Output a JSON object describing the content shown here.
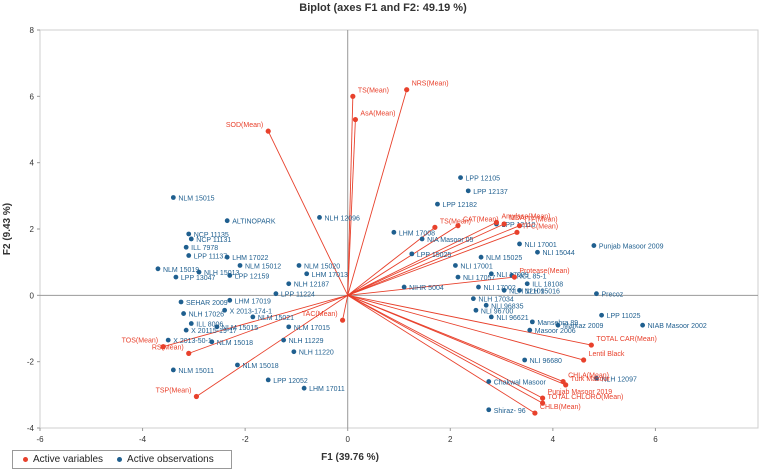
{
  "chart_data": {
    "type": "scatter",
    "title": "Biplot (axes F1 and F2: 49.19 %)",
    "xlabel": "F1 (39.76 %)",
    "ylabel": "F2 (9.43 %)",
    "xlim": [
      -6,
      8
    ],
    "ylim": [
      -4,
      8
    ],
    "xticks": [
      "-6",
      "-4",
      "-2",
      "0",
      "2",
      "4",
      "6"
    ],
    "yticks": [
      "-4",
      "-2",
      "0",
      "2",
      "4",
      "6",
      "8"
    ],
    "grid": false,
    "legend_position": "bottom-left",
    "colors": {
      "variables": "#e8412c",
      "observations": "#1f5f8f",
      "vector": "#e8412c",
      "axis": "#999999"
    },
    "legend": [
      {
        "label": "Active variables",
        "color": "#e8412c"
      },
      {
        "label": "Active observations",
        "color": "#1f5f8f"
      }
    ],
    "variables": [
      {
        "name": "TS(Mean)",
        "x": 0.1,
        "y": 6.0
      },
      {
        "name": "NRS(Mean)",
        "x": 1.15,
        "y": 6.2
      },
      {
        "name": "AsA(Mean)",
        "x": 0.15,
        "y": 5.3
      },
      {
        "name": "SOD(Mean)",
        "x": -1.55,
        "y": 4.95
      },
      {
        "name": "TS(Mean)",
        "x": 1.7,
        "y": 2.05
      },
      {
        "name": "CAT(Mean)",
        "x": 2.15,
        "y": 2.1
      },
      {
        "name": "Amylase(Mean)",
        "x": 2.9,
        "y": 2.2
      },
      {
        "name": "MDA",
        "x": 3.05,
        "y": 2.15
      },
      {
        "name": "(TF(Mean)",
        "x": 3.35,
        "y": 2.1
      },
      {
        "name": "TPC(Mean)",
        "x": 3.3,
        "y": 1.9
      },
      {
        "name": "Protease(Mean)",
        "x": 3.25,
        "y": 0.55
      },
      {
        "name": "TAC(Mean)",
        "x": -0.1,
        "y": -0.75
      },
      {
        "name": "TOS(Mean)",
        "x": -3.6,
        "y": -1.55
      },
      {
        "name": "RS(Mean)",
        "x": -3.1,
        "y": -1.75
      },
      {
        "name": "TSP(Mean)",
        "x": -2.95,
        "y": -3.05
      },
      {
        "name": "TOTAL CAR(Mean)",
        "x": 4.75,
        "y": -1.5
      },
      {
        "name": "Lentil Black",
        "x": 4.6,
        "y": -1.95
      },
      {
        "name": "CHLA(Mean)",
        "x": 4.2,
        "y": -2.6
      },
      {
        "name": "Turk Masoor",
        "x": 4.25,
        "y": -2.7
      },
      {
        "name": "Punjab Masoor 2019",
        "x": 3.8,
        "y": -3.1
      },
      {
        "name": "TOTAL CHLORO(Mean)",
        "x": 3.8,
        "y": -3.25
      },
      {
        "name": "CHLB(Mean)",
        "x": 3.65,
        "y": -3.55
      }
    ],
    "observations": [
      {
        "label": "NLM 15015",
        "x": -3.4,
        "y": 2.95
      },
      {
        "label": "ALTINOPARK",
        "x": -2.35,
        "y": 2.25
      },
      {
        "label": "NLH 12096",
        "x": -0.55,
        "y": 2.35
      },
      {
        "label": "NCP 11135",
        "x": -3.1,
        "y": 1.85
      },
      {
        "label": "NCP 11131",
        "x": -3.05,
        "y": 1.7
      },
      {
        "label": "ILL 7978",
        "x": -3.15,
        "y": 1.45
      },
      {
        "label": "LPP 11137",
        "x": -3.1,
        "y": 1.2
      },
      {
        "label": "LHM 17022",
        "x": -2.35,
        "y": 1.15
      },
      {
        "label": "NLM 15012",
        "x": -2.1,
        "y": 0.9
      },
      {
        "label": "NLM 15019",
        "x": -3.7,
        "y": 0.8
      },
      {
        "label": "NLH 15013",
        "x": -2.9,
        "y": 0.7
      },
      {
        "label": "LPP 12159",
        "x": -2.3,
        "y": 0.6
      },
      {
        "label": "LPP 13047",
        "x": -3.35,
        "y": 0.55
      },
      {
        "label": "NLH 12187",
        "x": -1.15,
        "y": 0.35
      },
      {
        "label": "LPP 11224",
        "x": -1.4,
        "y": 0.05
      },
      {
        "label": "LHM 17019",
        "x": -2.3,
        "y": -0.15
      },
      {
        "label": "SEHAR 2009",
        "x": -3.25,
        "y": -0.2
      },
      {
        "label": "NLM 15020",
        "x": -0.95,
        "y": 0.9
      },
      {
        "label": "LHM 17013",
        "x": -0.8,
        "y": 0.65
      },
      {
        "label": "NLH 17026",
        "x": -3.2,
        "y": -0.55
      },
      {
        "label": "X 2013-174-1",
        "x": -2.4,
        "y": -0.45
      },
      {
        "label": "ILL 8006",
        "x": -3.05,
        "y": -0.85
      },
      {
        "label": "NLM 15021",
        "x": -1.85,
        "y": -0.65
      },
      {
        "label": "NLM 15015",
        "x": -2.55,
        "y": -0.95
      },
      {
        "label": "NLM 17015",
        "x": -1.15,
        "y": -0.95
      },
      {
        "label": "X 20115-19-17",
        "x": -3.15,
        "y": -1.05
      },
      {
        "label": "X 2013-50-1",
        "x": -3.5,
        "y": -1.35
      },
      {
        "label": "NLM 15018",
        "x": -2.65,
        "y": -1.4
      },
      {
        "label": "NLH 11229",
        "x": -1.25,
        "y": -1.35
      },
      {
        "label": "NLH 11220",
        "x": -1.05,
        "y": -1.7
      },
      {
        "label": "NLM 15018",
        "x": -2.15,
        "y": -2.1
      },
      {
        "label": "NLM 15011",
        "x": -3.4,
        "y": -2.25
      },
      {
        "label": "LPP 12052",
        "x": -1.55,
        "y": -2.55
      },
      {
        "label": "LHM 17011",
        "x": -0.85,
        "y": -2.8
      },
      {
        "label": "LPP 12105",
        "x": 2.2,
        "y": 3.55
      },
      {
        "label": "LPP 12137",
        "x": 2.35,
        "y": 3.15
      },
      {
        "label": "LPP 12182",
        "x": 1.75,
        "y": 2.75
      },
      {
        "label": "LPP 12110",
        "x": 2.9,
        "y": 2.15
      },
      {
        "label": "LHM 17008",
        "x": 0.9,
        "y": 1.9
      },
      {
        "label": "NIA Masoor 05",
        "x": 1.45,
        "y": 1.7
      },
      {
        "label": "NLI 17001",
        "x": 3.35,
        "y": 1.55
      },
      {
        "label": "NLI 15044",
        "x": 3.7,
        "y": 1.3
      },
      {
        "label": "Punjab Masoor 2009",
        "x": 4.8,
        "y": 1.5
      },
      {
        "label": "LPP 15025",
        "x": 1.25,
        "y": 1.25
      },
      {
        "label": "NLM 15025",
        "x": 2.6,
        "y": 1.15
      },
      {
        "label": "NLI 17001",
        "x": 2.1,
        "y": 0.9
      },
      {
        "label": "NLI 17057",
        "x": 2.15,
        "y": 0.55
      },
      {
        "label": "NLI 17009",
        "x": 2.8,
        "y": 0.65
      },
      {
        "label": "NCL 85-1",
        "x": 3.2,
        "y": 0.6
      },
      {
        "label": "ILL 18108",
        "x": 3.5,
        "y": 0.35
      },
      {
        "label": "NLI 17002",
        "x": 2.55,
        "y": 0.25
      },
      {
        "label": "NLH 15016",
        "x": 3.35,
        "y": 0.15
      },
      {
        "label": "NLH 12109",
        "x": 3.05,
        "y": 0.15
      },
      {
        "label": "NIHR 5004",
        "x": 1.1,
        "y": 0.25
      },
      {
        "label": "NLH 17034",
        "x": 2.45,
        "y": -0.1
      },
      {
        "label": "NLI 96835",
        "x": 2.7,
        "y": -0.3
      },
      {
        "label": "NLI 96700",
        "x": 2.5,
        "y": -0.45
      },
      {
        "label": "NLI 96621",
        "x": 2.8,
        "y": -0.65
      },
      {
        "label": "Precoz",
        "x": 4.85,
        "y": 0.05
      },
      {
        "label": "LPP 11025",
        "x": 4.95,
        "y": -0.6
      },
      {
        "label": "Mansehra 89",
        "x": 3.6,
        "y": -0.8
      },
      {
        "label": "Markaz 2009",
        "x": 4.1,
        "y": -0.9
      },
      {
        "label": "Masoor 2006",
        "x": 3.55,
        "y": -1.05
      },
      {
        "label": "NIAB Masoor 2002",
        "x": 5.75,
        "y": -0.9
      },
      {
        "label": "NLI 96680",
        "x": 3.45,
        "y": -1.95
      },
      {
        "label": "Chakwal Masoor",
        "x": 2.75,
        "y": -2.6
      },
      {
        "label": "NLH 12097",
        "x": 4.85,
        "y": -2.5
      },
      {
        "label": "Shiraz- 96",
        "x": 2.75,
        "y": -3.45
      }
    ]
  }
}
